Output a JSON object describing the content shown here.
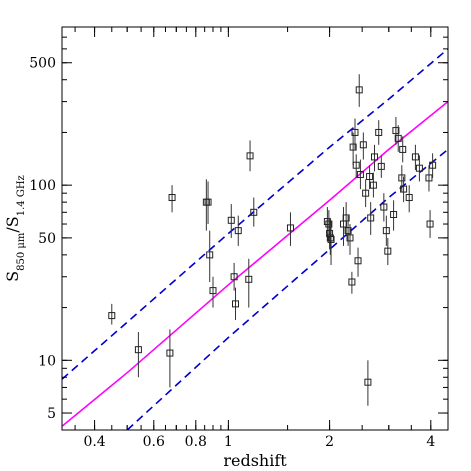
{
  "chart_data": {
    "type": "scatter",
    "title": "",
    "xlabel": "redshift",
    "ylabel": {
      "base_left": "S",
      "sub_left": "850 μm",
      "sep": "/S",
      "sub_right": "1.4 GHz"
    },
    "xscale": "log",
    "yscale": "log",
    "xlim": [
      0.32,
      4.5
    ],
    "ylim": [
      4,
      800
    ],
    "x_ticks": [
      0.4,
      0.6,
      0.8,
      1,
      2,
      4
    ],
    "x_tick_labels": [
      "0.4",
      "0.6",
      "0.8",
      "1",
      "2",
      "4"
    ],
    "y_ticks": [
      5,
      10,
      50,
      100,
      500
    ],
    "y_tick_labels": [
      "5",
      "10",
      "50",
      "100",
      "500"
    ],
    "grid": false,
    "colors": {
      "median_track": "#ff00ff",
      "bound_tracks": "#0000cc",
      "points": "#333333"
    },
    "series": [
      {
        "type": "line",
        "style": "solid",
        "color": "#ff00ff",
        "x": [
          0.32,
          0.5,
          1.0,
          2.0,
          3.0,
          4.5
        ],
        "y": [
          4.2,
          8.5,
          27,
          82,
          160,
          300
        ]
      },
      {
        "type": "line",
        "style": "dashed",
        "color": "#0000cc",
        "x": [
          0.32,
          0.5,
          1.0,
          2.0,
          3.0,
          4.5
        ],
        "y": [
          7.8,
          16.5,
          53,
          165,
          310,
          600
        ]
      },
      {
        "type": "line",
        "style": "dashed",
        "color": "#0000cc",
        "x": [
          0.5,
          1.0,
          2.0,
          3.0,
          4.5
        ],
        "y": [
          4.0,
          13.5,
          43,
          85,
          160
        ]
      },
      {
        "type": "scatter",
        "marker": "open-square",
        "points": [
          {
            "x": 0.45,
            "y": 18,
            "ylo": 16,
            "yhi": 21
          },
          {
            "x": 0.54,
            "y": 11.5,
            "ylo": 8,
            "yhi": 14.5
          },
          {
            "x": 0.67,
            "y": 11,
            "ylo": 7,
            "yhi": 15
          },
          {
            "x": 0.68,
            "y": 85,
            "ylo": 70,
            "yhi": 100
          },
          {
            "x": 0.86,
            "y": 80,
            "ylo": 55,
            "yhi": 108
          },
          {
            "x": 0.87,
            "y": 80,
            "ylo": 60,
            "yhi": 105
          },
          {
            "x": 0.88,
            "y": 40,
            "ylo": 28,
            "yhi": 55
          },
          {
            "x": 0.9,
            "y": 25,
            "ylo": 20,
            "yhi": 30
          },
          {
            "x": 1.02,
            "y": 63,
            "ylo": 50,
            "yhi": 78
          },
          {
            "x": 1.04,
            "y": 30,
            "ylo": 25,
            "yhi": 36
          },
          {
            "x": 1.05,
            "y": 21,
            "ylo": 17,
            "yhi": 26
          },
          {
            "x": 1.07,
            "y": 55,
            "ylo": 45,
            "yhi": 67
          },
          {
            "x": 1.15,
            "y": 29,
            "ylo": 20,
            "yhi": 38
          },
          {
            "x": 1.16,
            "y": 147,
            "ylo": 120,
            "yhi": 180
          },
          {
            "x": 1.19,
            "y": 70,
            "ylo": 58,
            "yhi": 85
          },
          {
            "x": 1.53,
            "y": 57,
            "ylo": 45,
            "yhi": 70
          },
          {
            "x": 1.97,
            "y": 62,
            "ylo": 50,
            "yhi": 75
          },
          {
            "x": 1.99,
            "y": 60,
            "ylo": 48,
            "yhi": 72
          },
          {
            "x": 2.0,
            "y": 53,
            "ylo": 43,
            "yhi": 64
          },
          {
            "x": 2.01,
            "y": 50,
            "ylo": 40,
            "yhi": 60
          },
          {
            "x": 2.02,
            "y": 49,
            "ylo": 35,
            "yhi": 62
          },
          {
            "x": 2.2,
            "y": 60,
            "ylo": 45,
            "yhi": 75
          },
          {
            "x": 2.24,
            "y": 65,
            "ylo": 52,
            "yhi": 80
          },
          {
            "x": 2.27,
            "y": 55,
            "ylo": 45,
            "yhi": 67
          },
          {
            "x": 2.3,
            "y": 50,
            "ylo": 40,
            "yhi": 60
          },
          {
            "x": 2.33,
            "y": 28,
            "ylo": 24,
            "yhi": 32
          },
          {
            "x": 2.35,
            "y": 165,
            "ylo": 130,
            "yhi": 200
          },
          {
            "x": 2.38,
            "y": 200,
            "ylo": 160,
            "yhi": 240
          },
          {
            "x": 2.4,
            "y": 130,
            "ylo": 110,
            "yhi": 150
          },
          {
            "x": 2.43,
            "y": 37,
            "ylo": 30,
            "yhi": 44
          },
          {
            "x": 2.45,
            "y": 350,
            "ylo": 280,
            "yhi": 430
          },
          {
            "x": 2.47,
            "y": 115,
            "ylo": 95,
            "yhi": 140
          },
          {
            "x": 2.52,
            "y": 170,
            "ylo": 140,
            "yhi": 200
          },
          {
            "x": 2.56,
            "y": 90,
            "ylo": 75,
            "yhi": 108
          },
          {
            "x": 2.6,
            "y": 7.5,
            "ylo": 5.5,
            "yhi": 10
          },
          {
            "x": 2.63,
            "y": 112,
            "ylo": 95,
            "yhi": 130
          },
          {
            "x": 2.65,
            "y": 65,
            "ylo": 52,
            "yhi": 80
          },
          {
            "x": 2.7,
            "y": 100,
            "ylo": 85,
            "yhi": 118
          },
          {
            "x": 2.72,
            "y": 145,
            "ylo": 120,
            "yhi": 170
          },
          {
            "x": 2.8,
            "y": 200,
            "ylo": 170,
            "yhi": 235
          },
          {
            "x": 2.85,
            "y": 128,
            "ylo": 110,
            "yhi": 148
          },
          {
            "x": 2.9,
            "y": 75,
            "ylo": 62,
            "yhi": 90
          },
          {
            "x": 2.95,
            "y": 55,
            "ylo": 45,
            "yhi": 67
          },
          {
            "x": 2.98,
            "y": 42,
            "ylo": 35,
            "yhi": 50
          },
          {
            "x": 3.1,
            "y": 68,
            "ylo": 55,
            "yhi": 82
          },
          {
            "x": 3.15,
            "y": 205,
            "ylo": 170,
            "yhi": 245
          },
          {
            "x": 3.2,
            "y": 185,
            "ylo": 155,
            "yhi": 220
          },
          {
            "x": 3.28,
            "y": 110,
            "ylo": 92,
            "yhi": 130
          },
          {
            "x": 3.3,
            "y": 160,
            "ylo": 135,
            "yhi": 190
          },
          {
            "x": 3.32,
            "y": 95,
            "ylo": 80,
            "yhi": 112
          },
          {
            "x": 3.45,
            "y": 85,
            "ylo": 70,
            "yhi": 100
          },
          {
            "x": 3.6,
            "y": 145,
            "ylo": 122,
            "yhi": 170
          },
          {
            "x": 3.7,
            "y": 125,
            "ylo": 105,
            "yhi": 148
          },
          {
            "x": 3.95,
            "y": 110,
            "ylo": 92,
            "yhi": 130
          },
          {
            "x": 3.98,
            "y": 60,
            "ylo": 50,
            "yhi": 72
          },
          {
            "x": 4.05,
            "y": 130,
            "ylo": 110,
            "yhi": 152
          }
        ]
      }
    ]
  }
}
